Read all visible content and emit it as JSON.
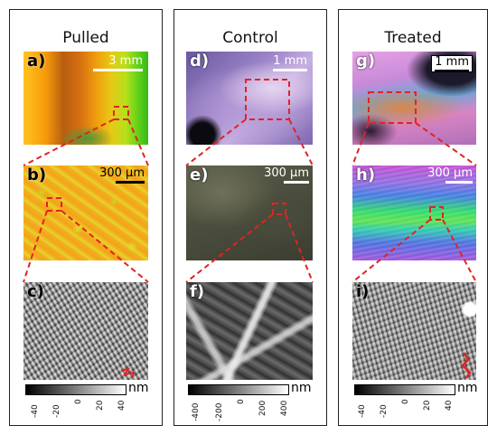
{
  "columns": [
    {
      "title": "Pulled",
      "panels": [
        {
          "letter": "a)",
          "scale": "3 mm"
        },
        {
          "letter": "b)",
          "scale": "300 µm"
        },
        {
          "letter": "c)"
        }
      ],
      "colorbar": {
        "unit": "nm",
        "ticks": [
          "-40",
          "-20",
          "0",
          "20",
          "40"
        ]
      }
    },
    {
      "title": "Control",
      "panels": [
        {
          "letter": "d)",
          "scale": "1 mm"
        },
        {
          "letter": "e)",
          "scale": "300 µm"
        },
        {
          "letter": "f)"
        }
      ],
      "colorbar": {
        "unit": "nm",
        "ticks": [
          "-400",
          "-200",
          "0",
          "200",
          "400"
        ]
      }
    },
    {
      "title": "Treated",
      "panels": [
        {
          "letter": "g)",
          "scale": "1 mm"
        },
        {
          "letter": "h)",
          "scale": "300 µm"
        },
        {
          "letter": "i)"
        }
      ],
      "colorbar": {
        "unit": "nm",
        "ticks": [
          "-40",
          "-20",
          "0",
          "20",
          "40"
        ]
      }
    }
  ],
  "colors": {
    "zoom_marker": "#e32222",
    "frame": "#222222"
  }
}
